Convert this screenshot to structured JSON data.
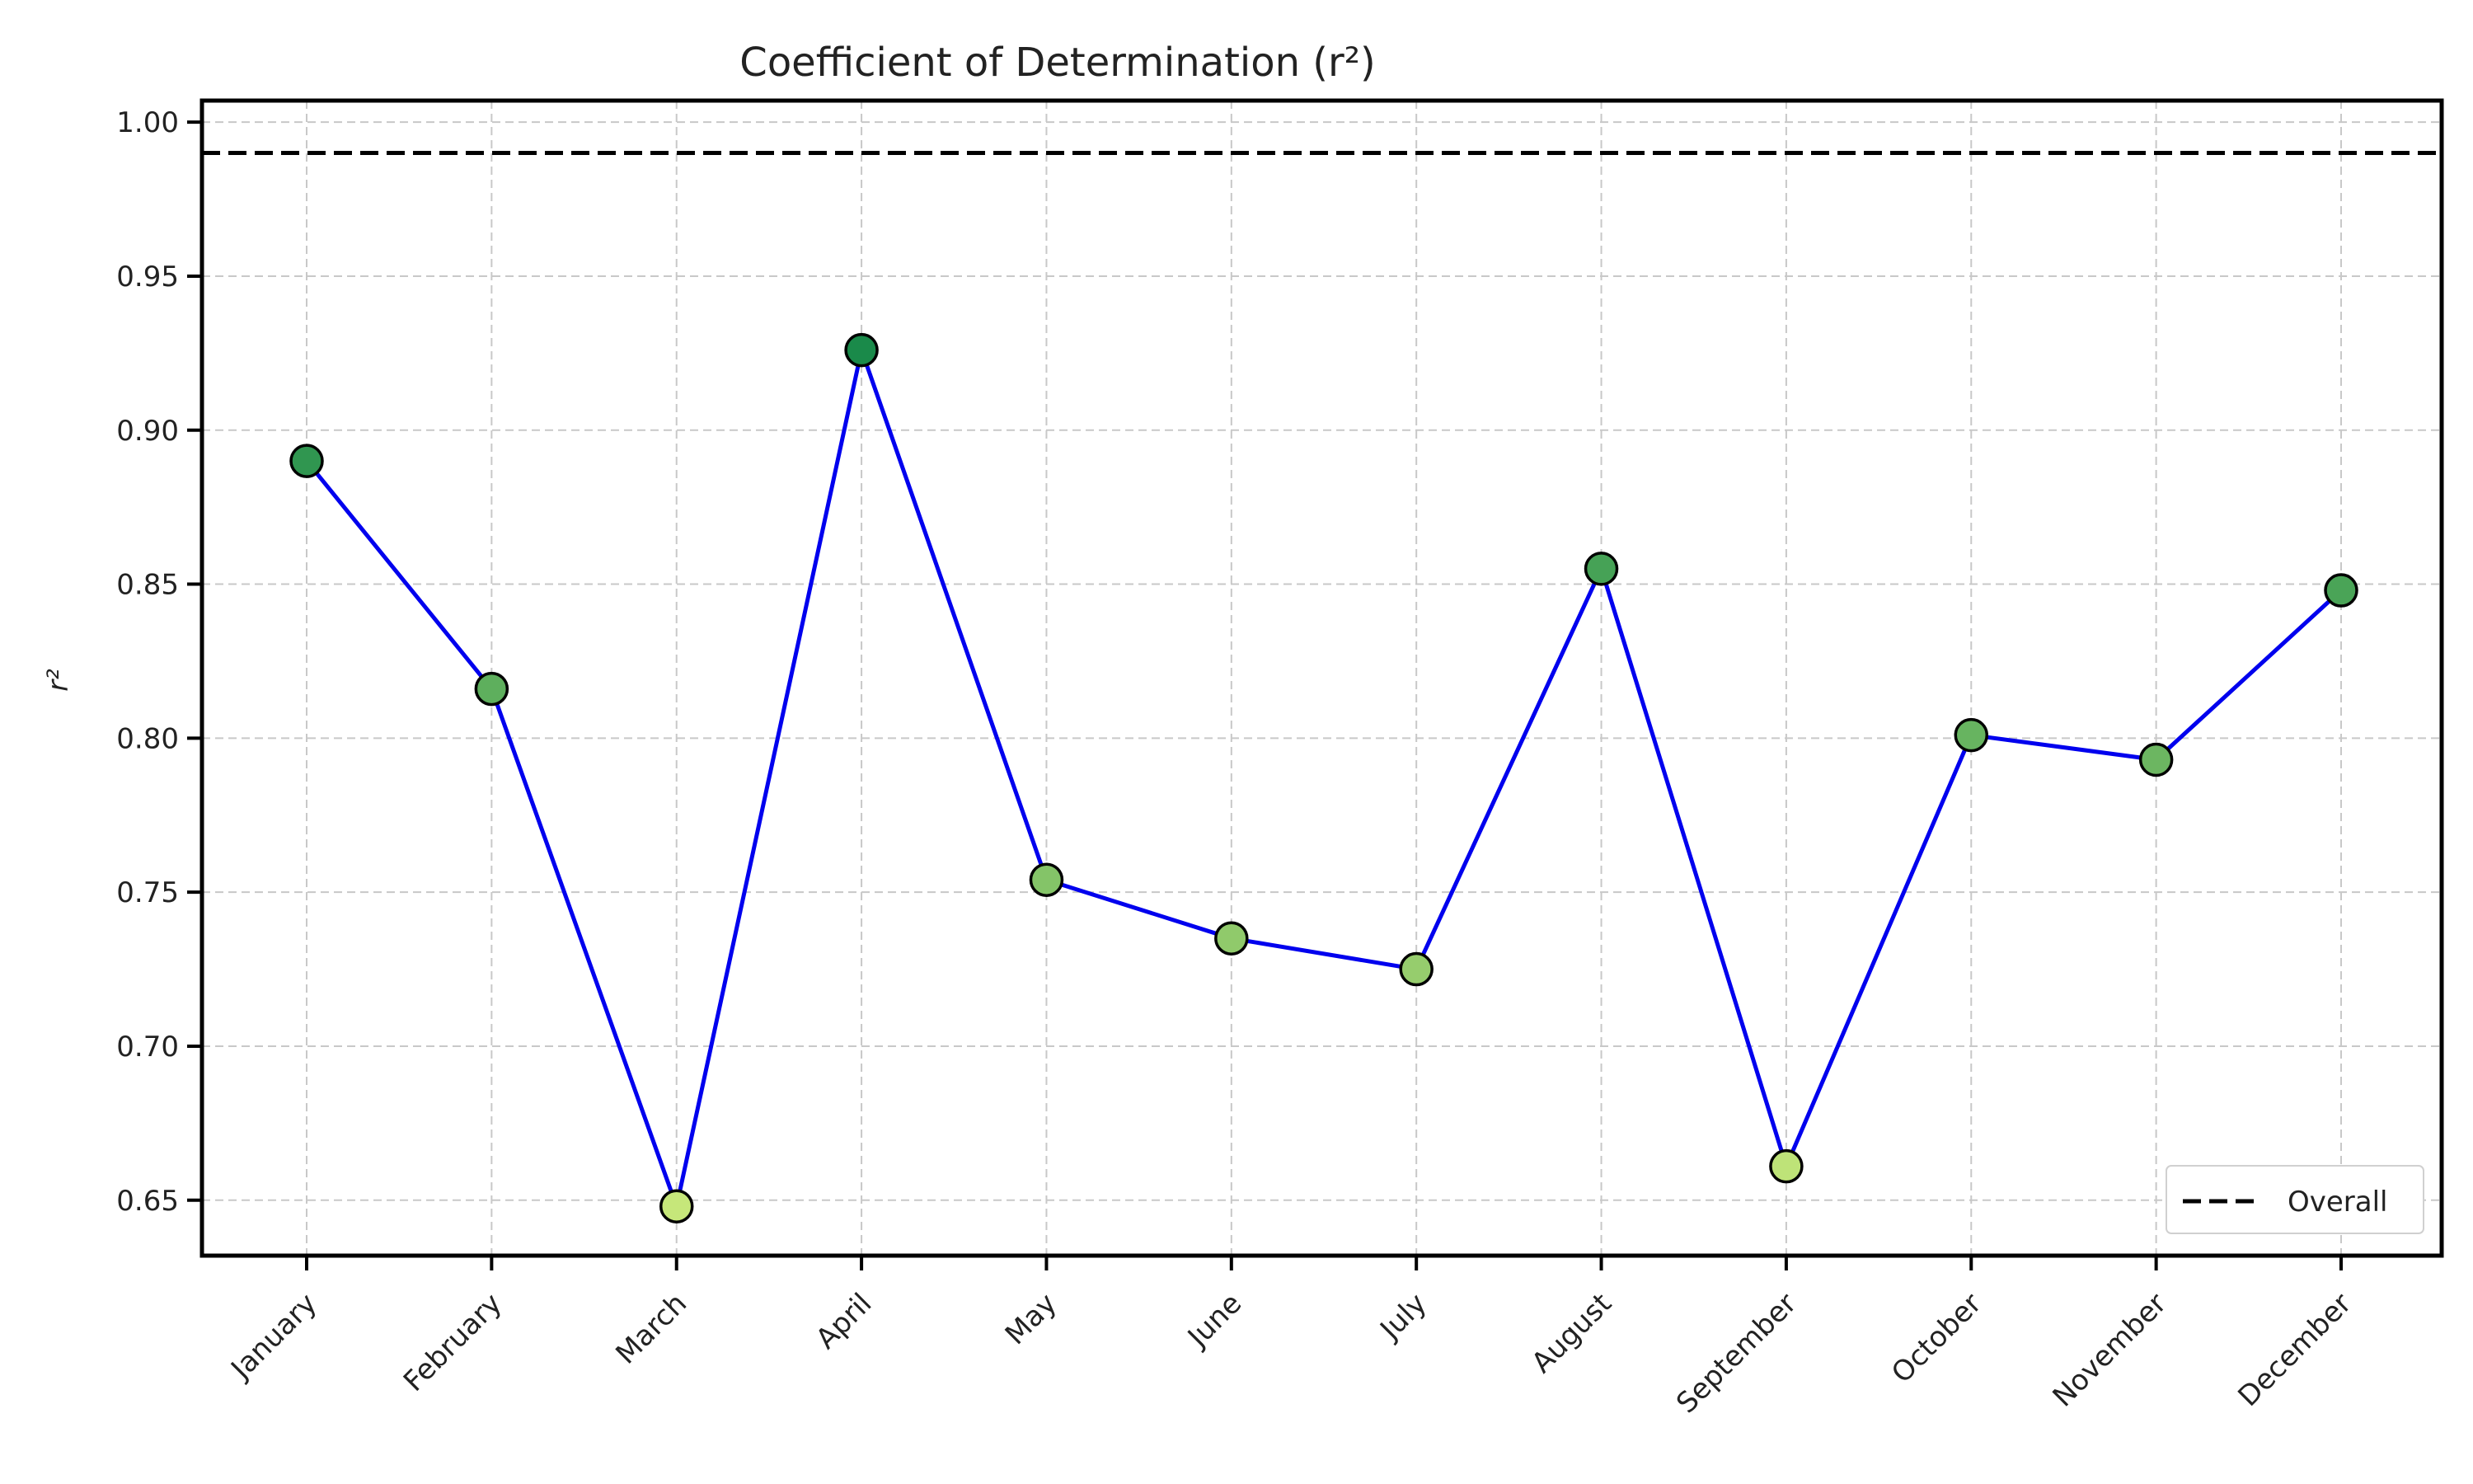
{
  "chart_data": {
    "type": "line",
    "title": "Coefficient of Determination (r²)",
    "xlabel": "",
    "ylabel": "r²",
    "categories": [
      "January",
      "February",
      "March",
      "April",
      "May",
      "June",
      "July",
      "August",
      "September",
      "October",
      "November",
      "December"
    ],
    "series": [
      {
        "values": [
          0.89,
          0.816,
          0.648,
          0.926,
          0.754,
          0.735,
          0.725,
          0.855,
          0.661,
          0.801,
          0.793,
          0.848
        ],
        "color": "#0000ee"
      }
    ],
    "reference_line": {
      "name": "Overall",
      "value": 0.99,
      "style": "dashed",
      "color": "#000000"
    },
    "yticks": [
      0.65,
      0.7,
      0.75,
      0.8,
      0.85,
      0.9,
      0.95,
      1.0
    ],
    "ytick_labels": [
      "0.65",
      "0.70",
      "0.75",
      "0.80",
      "0.85",
      "0.90",
      "0.95",
      "1.00"
    ],
    "ylim": [
      0.632,
      1.007
    ],
    "grid": true,
    "legend": {
      "entries": [
        "Overall"
      ],
      "placement": "lower-right"
    },
    "marker_colormap": {
      "low": "#c6e77a",
      "high": "#1a8a4a"
    }
  }
}
